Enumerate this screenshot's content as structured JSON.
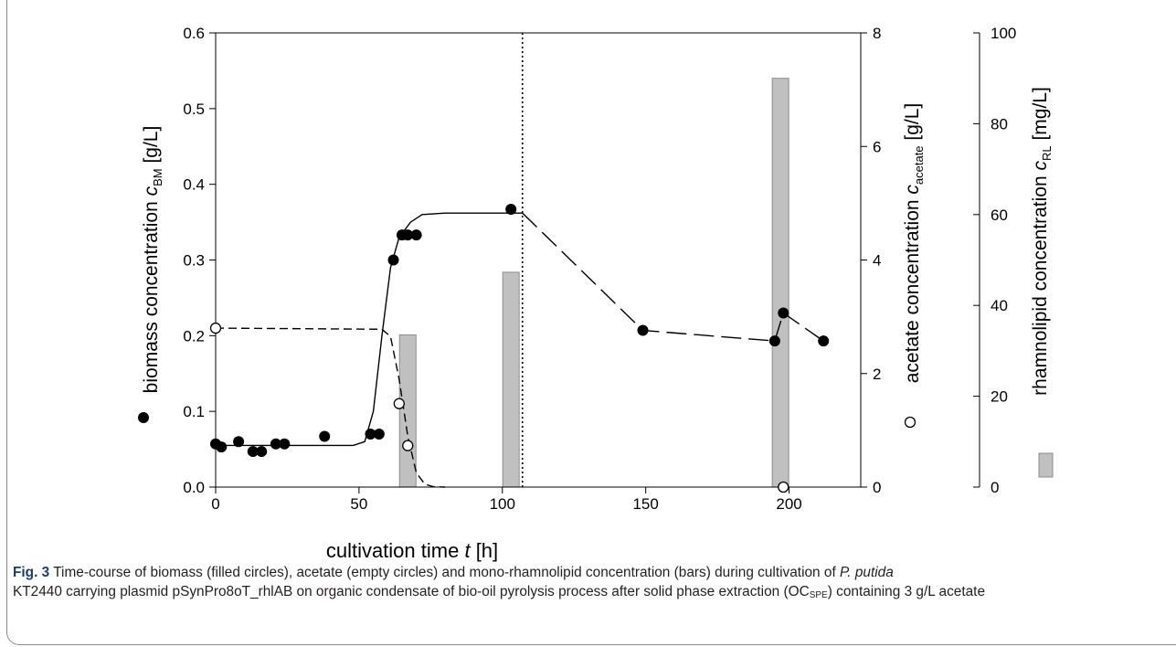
{
  "chart_data": {
    "type": "scatter",
    "xlabel": {
      "pre": "cultivation time ",
      "italic": "t",
      "post": " [h]"
    },
    "xlim": [
      0,
      225
    ],
    "xticks": [
      0,
      50,
      100,
      150,
      200
    ],
    "left_axis": {
      "label": {
        "pre": "biomass concentration ",
        "italic": "c",
        "sub": "BM",
        "post": " [g/L]"
      },
      "ylim": [
        0,
        0.6
      ],
      "ticks": [
        "0.0",
        "0.1",
        "0.2",
        "0.3",
        "0.4",
        "0.5",
        "0.6"
      ]
    },
    "mid_axis": {
      "label": {
        "pre": "acetate concentration ",
        "italic": "c",
        "sub": "acetate",
        "post": " [g/L]"
      },
      "ylim": [
        0,
        8
      ],
      "ticks": [
        "0",
        "2",
        "4",
        "6",
        "8"
      ]
    },
    "right_axis": {
      "label": {
        "pre": "rhamnolipid concentration ",
        "italic": "c",
        "sub": "RL",
        "post": " [mg/L]"
      },
      "ylim": [
        0,
        100
      ],
      "ticks": [
        "0",
        "20",
        "40",
        "60",
        "80",
        "100"
      ]
    },
    "series": [
      {
        "marker": "filled-circle",
        "axis": "left",
        "points": [
          [
            0,
            0.057
          ],
          [
            2,
            0.053
          ],
          [
            8,
            0.06
          ],
          [
            13,
            0.047
          ],
          [
            16,
            0.047
          ],
          [
            21,
            0.057
          ],
          [
            24,
            0.057
          ],
          [
            38,
            0.067
          ],
          [
            54,
            0.07
          ],
          [
            57,
            0.07
          ],
          [
            62,
            0.3
          ],
          [
            65,
            0.333
          ],
          [
            67,
            0.333
          ],
          [
            70,
            0.333
          ],
          [
            103,
            0.367
          ],
          [
            149,
            0.207
          ],
          [
            195,
            0.193
          ],
          [
            198,
            0.23
          ],
          [
            212,
            0.193
          ]
        ]
      },
      {
        "marker": "open-circle",
        "axis": "mid",
        "points": [
          [
            0,
            2.8
          ],
          [
            64,
            1.47
          ],
          [
            67,
            0.73
          ],
          [
            198,
            0.0
          ]
        ]
      },
      {
        "marker": "bar",
        "axis": "right",
        "points": [
          [
            67,
            33.5
          ],
          [
            103,
            47.3
          ],
          [
            197,
            90.0
          ]
        ]
      }
    ],
    "biomass_fit": [
      [
        0,
        0.055
      ],
      [
        48,
        0.055
      ],
      [
        52,
        0.06
      ],
      [
        55,
        0.1
      ],
      [
        58,
        0.2
      ],
      [
        61,
        0.29
      ],
      [
        64,
        0.33
      ],
      [
        68,
        0.35
      ],
      [
        72,
        0.36
      ],
      [
        80,
        0.362
      ],
      [
        107,
        0.362
      ]
    ],
    "biomass_dashed": [
      [
        107,
        0.362
      ],
      [
        149,
        0.207
      ],
      [
        195,
        0.193
      ],
      [
        198,
        0.23
      ],
      [
        212,
        0.193
      ]
    ],
    "acetate_fit": [
      [
        0,
        2.8
      ],
      [
        58,
        2.78
      ],
      [
        61,
        2.65
      ],
      [
        64,
        1.9
      ],
      [
        67,
        0.9
      ],
      [
        70,
        0.25
      ],
      [
        73,
        0.05
      ],
      [
        76,
        0.005
      ],
      [
        80,
        0.0
      ]
    ],
    "vline_x": 107,
    "colors": {
      "bar_fill": "#c0c0c0",
      "bar_edge": "#8c8c8c",
      "points": "#000000"
    }
  },
  "caption": {
    "fig": "Fig. 3",
    "t1": "  Time-course of biomass (filled circles), acetate (empty circles) and mono-rhamnolipid concentration (bars) during cultivation of ",
    "t2": "P. putida",
    "t3": "KT2440 carrying plasmid pSynPro8oT_rhlAB on organic condensate of bio-oil pyrolysis process after solid phase extraction (OC",
    "t4": "SPE",
    "t5": ") containing 3 g/L acetate"
  }
}
